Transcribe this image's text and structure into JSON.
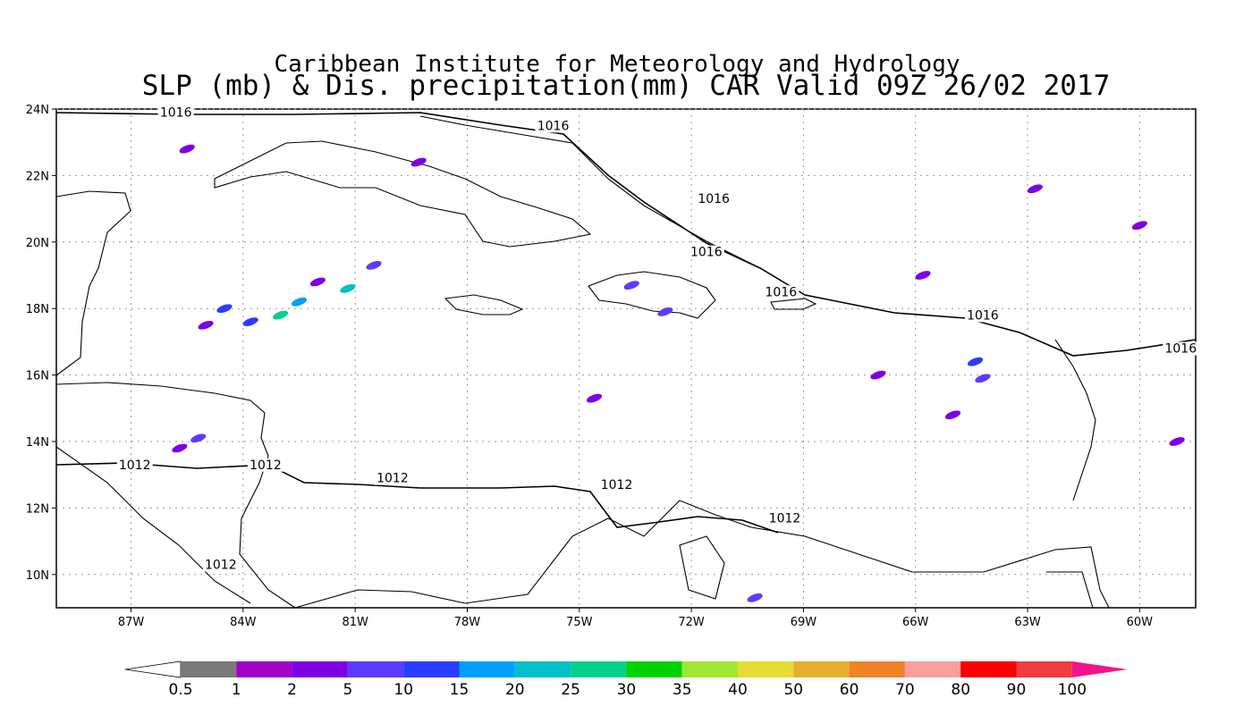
{
  "title": {
    "line1": "Caribbean Institute for Meteorology and Hydrology",
    "line2": "SLP (mb) & Dis. precipitation(mm) CAR Valid 09Z 26/02 2017"
  },
  "map": {
    "lon_range": [
      -89,
      -58.5
    ],
    "lat_range": [
      9,
      24
    ],
    "lon_ticks": [
      {
        "lon": -87,
        "label": "87W"
      },
      {
        "lon": -84,
        "label": "84W"
      },
      {
        "lon": -81,
        "label": "81W"
      },
      {
        "lon": -78,
        "label": "78W"
      },
      {
        "lon": -75,
        "label": "75W"
      },
      {
        "lon": -72,
        "label": "72W"
      },
      {
        "lon": -69,
        "label": "69W"
      },
      {
        "lon": -66,
        "label": "66W"
      },
      {
        "lon": -63,
        "label": "63W"
      },
      {
        "lon": -60,
        "label": "60W"
      }
    ],
    "lat_ticks": [
      {
        "lat": 24,
        "label": "24N"
      },
      {
        "lat": 22,
        "label": "22N"
      },
      {
        "lat": 20,
        "label": "20N"
      },
      {
        "lat": 18,
        "label": "18N"
      },
      {
        "lat": 16,
        "label": "16N"
      },
      {
        "lat": 14,
        "label": "14N"
      },
      {
        "lat": 12,
        "label": "12N"
      },
      {
        "lat": 10,
        "label": "10N"
      }
    ],
    "grid": true,
    "isobars": [
      {
        "value": "1016",
        "label_positions": [
          [
            -85.8,
            23.8
          ],
          [
            -75.7,
            23.4
          ],
          [
            -71.4,
            21.2
          ],
          [
            -71.6,
            19.6
          ],
          [
            -69.6,
            18.4
          ],
          [
            -64.2,
            17.7
          ],
          [
            -58.9,
            16.7
          ]
        ]
      },
      {
        "value": "1012",
        "label_positions": [
          [
            -86.9,
            13.2
          ],
          [
            -83.4,
            13.2
          ],
          [
            -80.0,
            12.8
          ],
          [
            -74.0,
            12.6
          ],
          [
            -69.5,
            11.6
          ],
          [
            -84.6,
            10.2
          ]
        ]
      }
    ],
    "precip_cells": [
      {
        "lon": -84.5,
        "lat": 18.0,
        "mm": 10
      },
      {
        "lon": -83.0,
        "lat": 17.8,
        "mm": 25
      },
      {
        "lon": -82.5,
        "lat": 18.2,
        "mm": 15
      },
      {
        "lon": -81.2,
        "lat": 18.6,
        "mm": 20
      },
      {
        "lon": -80.5,
        "lat": 19.3,
        "mm": 5
      },
      {
        "lon": -83.8,
        "lat": 17.6,
        "mm": 10
      },
      {
        "lon": -85.0,
        "lat": 17.5,
        "mm": 2
      },
      {
        "lon": -82.0,
        "lat": 18.8,
        "mm": 2
      },
      {
        "lon": -85.2,
        "lat": 14.1,
        "mm": 5
      },
      {
        "lon": -85.7,
        "lat": 13.8,
        "mm": 2
      },
      {
        "lon": -85.5,
        "lat": 22.8,
        "mm": 2
      },
      {
        "lon": -79.3,
        "lat": 22.4,
        "mm": 2
      },
      {
        "lon": -73.6,
        "lat": 18.7,
        "mm": 5
      },
      {
        "lon": -72.7,
        "lat": 17.9,
        "mm": 5
      },
      {
        "lon": -64.4,
        "lat": 16.4,
        "mm": 10
      },
      {
        "lon": -64.2,
        "lat": 15.9,
        "mm": 5
      },
      {
        "lon": -67.0,
        "lat": 16.0,
        "mm": 2
      },
      {
        "lon": -65.0,
        "lat": 14.8,
        "mm": 2
      },
      {
        "lon": -60.0,
        "lat": 20.5,
        "mm": 2
      },
      {
        "lon": -59.0,
        "lat": 14.0,
        "mm": 2
      },
      {
        "lon": -70.3,
        "lat": 9.3,
        "mm": 5
      },
      {
        "lon": -62.8,
        "lat": 21.6,
        "mm": 2
      },
      {
        "lon": -65.8,
        "lat": 19.0,
        "mm": 2
      },
      {
        "lon": -74.6,
        "lat": 15.3,
        "mm": 2
      }
    ]
  },
  "colorbar": {
    "labels": [
      "0.5",
      "1",
      "2",
      "5",
      "10",
      "15",
      "20",
      "25",
      "30",
      "35",
      "40",
      "50",
      "60",
      "70",
      "80",
      "90",
      "100"
    ],
    "colors": [
      "#7a7a7a",
      "#a000c8",
      "#7f00e6",
      "#5a3cff",
      "#2a3cff",
      "#00a0ff",
      "#00c0c8",
      "#00d28c",
      "#00d200",
      "#a0e632",
      "#e6dc32",
      "#e6af2d",
      "#f08228",
      "#fa9e9e",
      "#fa0000",
      "#f03c3c"
    ],
    "under_color": "#ffffff",
    "over_color": "#f0148c"
  }
}
